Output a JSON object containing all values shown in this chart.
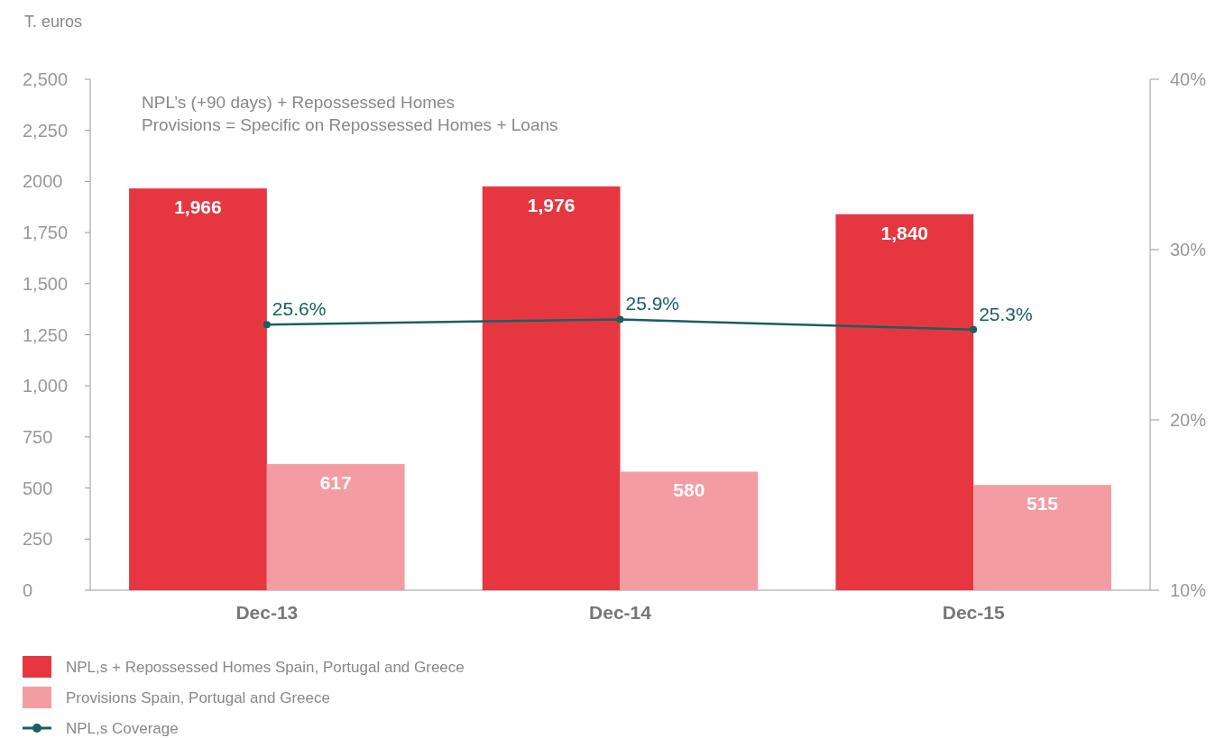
{
  "chart_data": {
    "type": "bar",
    "ylabel": "T. euros",
    "annotations": [
      "NPL’s (+90 days) + Repossessed Homes",
      "Provisions = Specific on Repossessed Homes + Loans"
    ],
    "categories": [
      "Dec-13",
      "Dec-14",
      "Dec-15"
    ],
    "series": [
      {
        "name": "NPL,s + Repossessed Homes Spain, Portugal and Greece",
        "color": "#e63741",
        "values": [
          1966,
          1976,
          1840
        ],
        "value_labels": [
          "1,966",
          "1,976",
          "1,840"
        ]
      },
      {
        "name": "Provisions Spain, Portugal and Greece",
        "color": "#f39ca2",
        "values": [
          617,
          580,
          515
        ],
        "value_labels": [
          "617",
          "580",
          "515"
        ]
      },
      {
        "name": "NPL,s Coverage",
        "type": "line",
        "axis": "y2",
        "color": "#1a5e63",
        "values": [
          25.6,
          25.9,
          25.3
        ],
        "value_labels": [
          "25.6%",
          "25.9%",
          "25.3%"
        ],
        "marker": "circle"
      }
    ],
    "ylim": [
      0,
      2500
    ],
    "yticks": [
      0,
      250,
      500,
      750,
      {
        "value": 1000,
        "label": "1,000"
      },
      {
        "value": 1250,
        "label": "1,250"
      },
      {
        "value": 1500,
        "label": "1,500"
      },
      {
        "value": 1750,
        "label": "1,750"
      },
      2000,
      {
        "value": 2250,
        "label": "2,250"
      },
      {
        "value": 2500,
        "label": "2,500"
      }
    ],
    "y2lim": [
      10,
      40
    ],
    "y2ticks": [
      {
        "value": 10,
        "label": "10%"
      },
      {
        "value": 20,
        "label": "20%"
      },
      {
        "value": 30,
        "label": "30%"
      },
      {
        "value": 40,
        "label": "40%"
      }
    ],
    "legend": "bottom",
    "grid": false
  }
}
